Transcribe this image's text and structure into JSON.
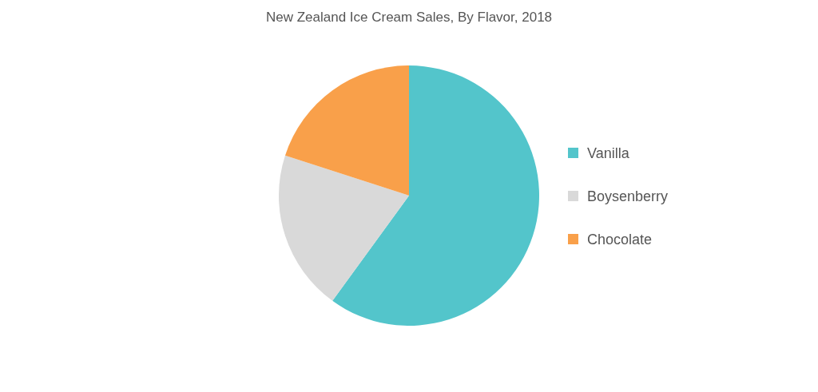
{
  "chart_data": {
    "type": "pie",
    "title": "New Zealand Ice Cream Sales, By Flavor, 2018",
    "categories": [
      "Vanilla",
      "Boysenberry",
      "Chocolate"
    ],
    "values": [
      60,
      20,
      20
    ],
    "colors": [
      "#53c5cb",
      "#d9d9d9",
      "#f9a04a"
    ],
    "legend": "right"
  }
}
